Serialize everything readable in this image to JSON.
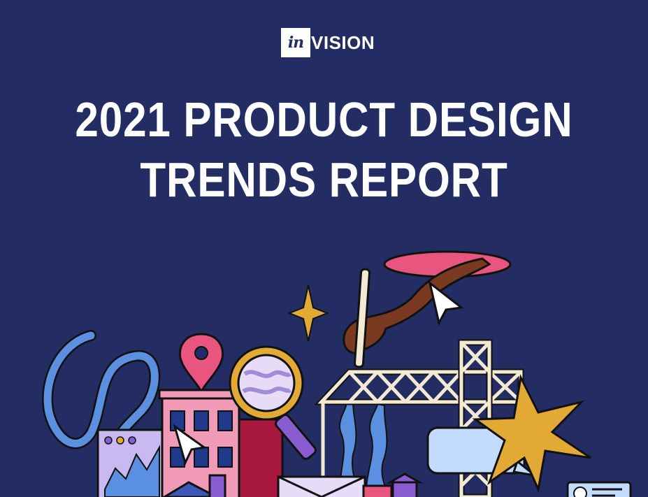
{
  "brand": {
    "logo_mark": "in",
    "logo_word": "VISION"
  },
  "report": {
    "title_line1": "2021 PRODUCT DESIGN",
    "title_line2": "TRENDS REPORT"
  },
  "colors": {
    "background": "#232d63",
    "text": "#ffffff",
    "pink": "#e8557f",
    "gold": "#e2a935",
    "blue": "#5b8fe0",
    "lavender": "#c8b9f0"
  },
  "illustration_icons": [
    "hand-with-pen-icon",
    "cursor-arrow-icon",
    "sparkle-icon",
    "location-pin-icon",
    "magnifying-glass-icon",
    "crane-icon",
    "building-icon",
    "chart-window-icon",
    "chat-bubble-icon",
    "star-burst-icon",
    "envelope-icon",
    "id-card-icon",
    "cable-icon"
  ]
}
